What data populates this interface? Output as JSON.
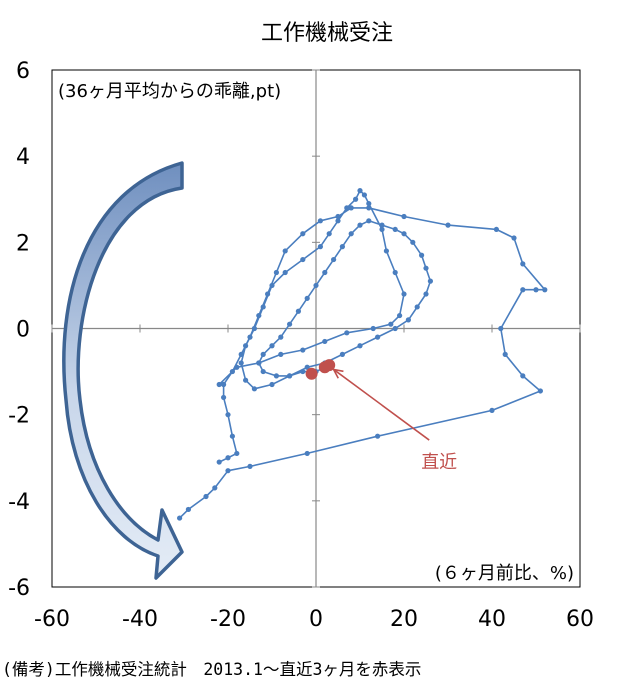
{
  "chart_data": {
    "type": "line",
    "title": "工作機械受注",
    "ylabel_note": "(36ヶ月平均からの乖離,pt)",
    "xlabel_note": "(６ヶ月前比、%)",
    "xlim": [
      -60,
      60
    ],
    "ylim": [
      -6,
      6
    ],
    "x_ticks": [
      -60,
      -40,
      -20,
      0,
      20,
      40,
      60
    ],
    "y_ticks": [
      6,
      4,
      2,
      0,
      -2,
      -4,
      -6
    ],
    "x_tick_labels": [
      "-60",
      "-40",
      "-20",
      "0",
      "20",
      "40",
      "60"
    ],
    "y_tick_labels": [
      "6",
      "4",
      "2",
      "0",
      "-2",
      "-4",
      "-6"
    ],
    "series": [
      {
        "color": "#4a7ebf",
        "points": [
          [
            -31,
            -4.4
          ],
          [
            -29,
            -4.2
          ],
          [
            -25,
            -3.9
          ],
          [
            -23,
            -3.7
          ],
          [
            -20,
            -3.3
          ],
          [
            -15,
            -3.2
          ],
          [
            -2,
            -2.9
          ],
          [
            14,
            -2.5
          ],
          [
            40,
            -1.9
          ],
          [
            51,
            -1.45
          ],
          [
            47,
            -1.1
          ],
          [
            43,
            -0.6
          ],
          [
            42,
            0.0
          ],
          [
            47,
            0.9
          ],
          [
            50,
            0.9
          ],
          [
            52,
            0.9
          ],
          [
            47,
            1.5
          ],
          [
            45,
            2.1
          ],
          [
            41,
            2.3
          ],
          [
            30,
            2.4
          ],
          [
            20,
            2.6
          ],
          [
            12,
            2.8
          ],
          [
            8,
            2.8
          ],
          [
            5,
            2.6
          ],
          [
            1,
            2.5
          ],
          [
            -3,
            2.2
          ],
          [
            -7,
            1.8
          ],
          [
            -9,
            1.3
          ],
          [
            -11,
            0.8
          ],
          [
            -13,
            0.3
          ],
          [
            -15,
            -0.2
          ],
          [
            -17,
            -0.6
          ],
          [
            -19,
            -1.0
          ],
          [
            -21,
            -1.3
          ],
          [
            -21,
            -1.6
          ],
          [
            -20,
            -2.0
          ],
          [
            -19,
            -2.5
          ],
          [
            -18,
            -2.9
          ],
          [
            -20,
            -3.0
          ],
          [
            -22,
            -3.1
          ]
        ]
      },
      {
        "color": "#4a7ebf",
        "points": [
          [
            -22,
            -1.3
          ],
          [
            -18,
            -0.9
          ],
          [
            -13,
            -0.8
          ],
          [
            -8,
            -0.6
          ],
          [
            -3,
            -0.5
          ],
          [
            2,
            -0.3
          ],
          [
            7,
            -0.1
          ],
          [
            13,
            0.0
          ],
          [
            17,
            0.1
          ],
          [
            19,
            0.3
          ],
          [
            20,
            0.8
          ],
          [
            18,
            1.3
          ],
          [
            16,
            1.8
          ],
          [
            15,
            2.3
          ],
          [
            12,
            2.9
          ],
          [
            11,
            3.1
          ],
          [
            10,
            3.2
          ],
          [
            9,
            3.0
          ],
          [
            7,
            2.8
          ],
          [
            5,
            2.5
          ],
          [
            3,
            2.2
          ],
          [
            1,
            1.9
          ],
          [
            -3,
            1.6
          ],
          [
            -7,
            1.3
          ],
          [
            -10,
            1.0
          ],
          [
            -12,
            0.5
          ],
          [
            -14,
            0.0
          ],
          [
            -16,
            -0.4
          ],
          [
            -17,
            -0.8
          ],
          [
            -16,
            -1.2
          ],
          [
            -14,
            -1.4
          ],
          [
            -10,
            -1.3
          ],
          [
            -6,
            -1.1
          ],
          [
            -2,
            -0.9
          ],
          [
            2,
            -0.8
          ],
          [
            6,
            -0.6
          ],
          [
            10,
            -0.4
          ],
          [
            14,
            -0.2
          ],
          [
            18,
            0.0
          ],
          [
            21,
            0.2
          ],
          [
            23,
            0.5
          ],
          [
            25,
            0.8
          ],
          [
            26,
            1.1
          ],
          [
            25,
            1.4
          ],
          [
            24,
            1.7
          ],
          [
            22,
            2.0
          ],
          [
            20,
            2.2
          ],
          [
            18,
            2.3
          ],
          [
            15,
            2.4
          ],
          [
            12,
            2.5
          ],
          [
            10,
            2.4
          ],
          [
            8,
            2.2
          ],
          [
            6,
            1.9
          ],
          [
            4,
            1.6
          ],
          [
            2,
            1.3
          ],
          [
            0,
            1.0
          ],
          [
            -2,
            0.7
          ],
          [
            -4,
            0.4
          ],
          [
            -6,
            0.1
          ],
          [
            -8,
            -0.2
          ],
          [
            -10,
            -0.4
          ],
          [
            -12,
            -0.6
          ],
          [
            -13,
            -0.8
          ],
          [
            -12,
            -1.0
          ],
          [
            -9,
            -1.1
          ],
          [
            -6,
            -1.1
          ],
          [
            -3,
            -1.0
          ],
          [
            0,
            -1.0
          ],
          [
            2,
            -0.9
          ],
          [
            3,
            -0.8
          ]
        ]
      }
    ],
    "highlight_points": [
      [
        -1,
        -1.05
      ],
      [
        2,
        -0.9
      ],
      [
        3,
        -0.85
      ]
    ],
    "highlight_color": "#c0504d",
    "annotation": {
      "text": "直近",
      "color": "#c0504d",
      "target": [
        4,
        -0.95
      ],
      "label_at": [
        28,
        -3.1
      ]
    },
    "arrow_color": "#3e6494"
  },
  "footnote": "(備考)工作機械受注統計　2013.1～直近3ヶ月を赤表示"
}
